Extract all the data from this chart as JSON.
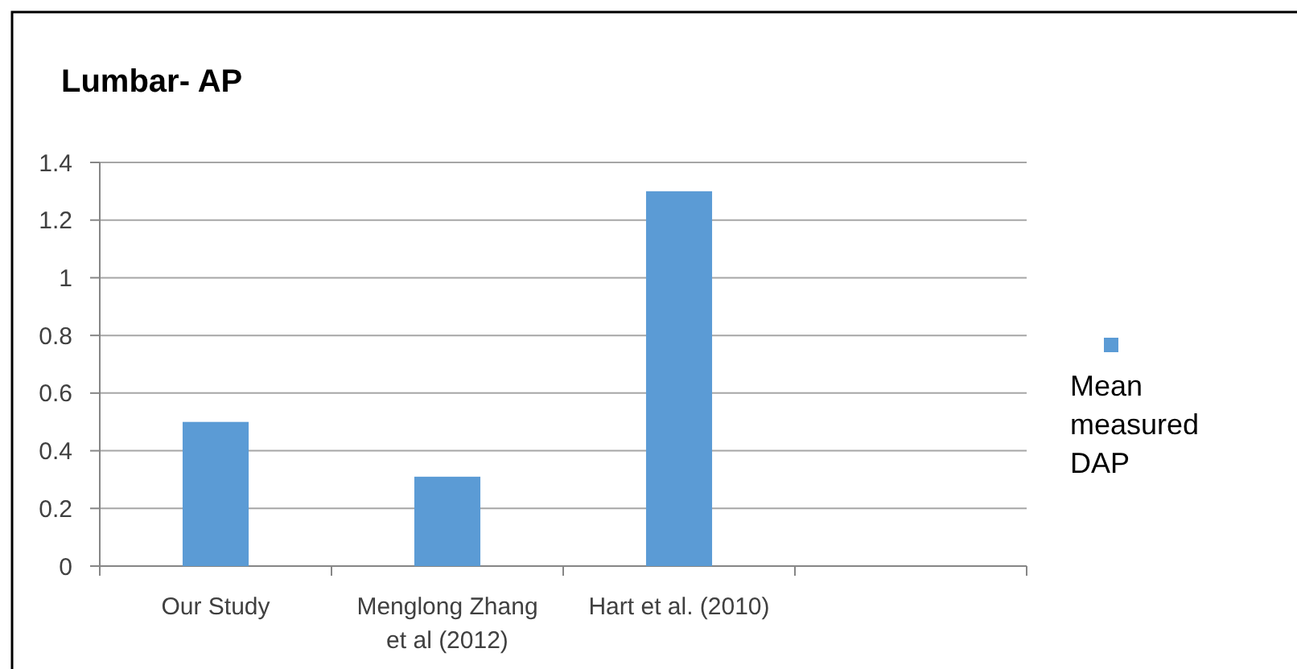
{
  "chart_data": {
    "type": "bar",
    "title": "Lumbar- AP",
    "categories": [
      "Our Study",
      "Menglong Zhang et al (2012)",
      "Hart et al. (2010)",
      null
    ],
    "series": [
      {
        "name": "Mean measured DAP",
        "color": "#5b9bd5",
        "values": [
          0.5,
          0.31,
          1.3,
          null
        ]
      }
    ],
    "ylim": [
      0,
      1.4
    ],
    "yticks": [
      0,
      0.2,
      0.4,
      0.6,
      0.8,
      1,
      1.2,
      1.4
    ],
    "grid": "y",
    "legend": "right"
  }
}
